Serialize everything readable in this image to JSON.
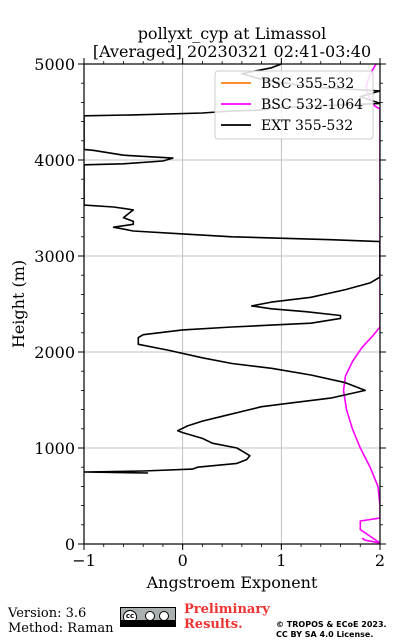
{
  "chart_data": {
    "type": "line",
    "title": [
      "pollyxt_cyp at Limassol",
      "[Averaged] 20230321 02:41-03:40"
    ],
    "xlabel": "Angstroem Exponent",
    "ylabel": "Height (m)",
    "xlim": [
      -1,
      2
    ],
    "ylim": [
      0,
      5000
    ],
    "x_ticks": [
      -1,
      0,
      1,
      2
    ],
    "x_tick_labels": [
      "−1",
      "0",
      "1",
      "2"
    ],
    "y_ticks": [
      0,
      1000,
      2000,
      3000,
      4000,
      5000
    ],
    "y_tick_labels": [
      "0",
      "1000",
      "2000",
      "3000",
      "4000",
      "5000"
    ],
    "grid": true,
    "legend_position": "top-right",
    "series": [
      {
        "name": "BSC 355-532",
        "color": "#ff7f0e",
        "points": []
      },
      {
        "name": "BSC 532-1064",
        "color": "#ff00ff",
        "points": [
          [
            1.82,
            60
          ],
          [
            1.85,
            40
          ],
          [
            2.0,
            10
          ],
          [
            1.8,
            150
          ],
          [
            1.8,
            240
          ],
          [
            2.0,
            270
          ],
          [
            2.0,
            400
          ],
          [
            1.98,
            600
          ],
          [
            1.9,
            800
          ],
          [
            1.8,
            1000
          ],
          [
            1.72,
            1200
          ],
          [
            1.66,
            1400
          ],
          [
            1.63,
            1600
          ],
          [
            1.65,
            1750
          ],
          [
            1.72,
            1900
          ],
          [
            1.82,
            2050
          ],
          [
            1.92,
            2160
          ],
          [
            2.0,
            2260
          ],
          [
            2.0,
            4530
          ],
          [
            1.95,
            4560
          ],
          [
            1.92,
            4600
          ],
          [
            1.88,
            4680
          ],
          [
            1.86,
            4760
          ],
          [
            1.88,
            4840
          ],
          [
            1.92,
            4930
          ],
          [
            1.96,
            5000
          ]
        ]
      },
      {
        "name": "EXT 355-532",
        "color": "#000000",
        "points": [
          [
            -0.35,
            740
          ],
          [
            -1.0,
            750
          ],
          [
            -0.4,
            760
          ],
          [
            0.1,
            780
          ],
          [
            0.15,
            800
          ],
          [
            0.55,
            840
          ],
          [
            0.65,
            880
          ],
          [
            0.68,
            920
          ],
          [
            0.6,
            970
          ],
          [
            0.55,
            1000
          ],
          [
            0.3,
            1050
          ],
          [
            0.2,
            1100
          ],
          [
            0.0,
            1160
          ],
          [
            -0.05,
            1180
          ],
          [
            0.05,
            1230
          ],
          [
            0.2,
            1280
          ],
          [
            0.4,
            1330
          ],
          [
            0.6,
            1380
          ],
          [
            0.8,
            1430
          ],
          [
            1.1,
            1470
          ],
          [
            1.5,
            1520
          ],
          [
            1.85,
            1600
          ],
          [
            1.65,
            1680
          ],
          [
            1.3,
            1760
          ],
          [
            0.9,
            1830
          ],
          [
            0.5,
            1880
          ],
          [
            0.2,
            1940
          ],
          [
            -0.15,
            2020
          ],
          [
            -0.45,
            2080
          ],
          [
            -0.45,
            2150
          ],
          [
            -0.4,
            2180
          ],
          [
            0.0,
            2230
          ],
          [
            0.5,
            2260
          ],
          [
            0.9,
            2280
          ],
          [
            1.3,
            2300
          ],
          [
            1.6,
            2350
          ],
          [
            1.6,
            2380
          ],
          [
            1.25,
            2420
          ],
          [
            0.9,
            2450
          ],
          [
            0.7,
            2480
          ],
          [
            0.9,
            2520
          ],
          [
            1.3,
            2570
          ],
          [
            1.65,
            2650
          ],
          [
            1.9,
            2720
          ],
          [
            2.0,
            2780
          ],
          [
            2.0,
            3150
          ],
          [
            1.5,
            3170
          ],
          [
            0.5,
            3200
          ],
          [
            0.0,
            3230
          ],
          [
            -0.5,
            3260
          ],
          [
            -0.7,
            3300
          ],
          [
            -0.5,
            3330
          ],
          [
            -0.5,
            3360
          ],
          [
            -0.6,
            3400
          ],
          [
            -0.55,
            3440
          ],
          [
            -0.5,
            3480
          ],
          [
            -0.7,
            3510
          ],
          [
            -1.0,
            3530
          ],
          [
            -1.0,
            3950
          ],
          [
            -0.6,
            3960
          ],
          [
            -0.2,
            3990
          ],
          [
            -0.1,
            4020
          ],
          [
            -0.6,
            4050
          ],
          [
            -0.9,
            4100
          ],
          [
            -1.0,
            4110
          ],
          [
            -1.0,
            4460
          ],
          [
            -0.5,
            4470
          ],
          [
            0.2,
            4490
          ],
          [
            0.5,
            4510
          ],
          [
            0.8,
            4520
          ],
          [
            0.9,
            4540
          ],
          [
            1.3,
            4560
          ],
          [
            1.8,
            4580
          ],
          [
            2.0,
            4590
          ],
          [
            1.8,
            4660
          ],
          [
            2.0,
            4720
          ],
          [
            1.3,
            4760
          ],
          [
            0.8,
            4840
          ],
          [
            0.6,
            4900
          ],
          [
            0.9,
            4960
          ],
          [
            1.0,
            5000
          ]
        ]
      }
    ]
  },
  "footer": {
    "version": "Version: 3.6",
    "method": "Method: Raman",
    "preliminary_line1": "Preliminary",
    "preliminary_line2": "Results.",
    "copyright_line1": "© TROPOS & ECoE 2023.",
    "copyright_line2": "CC BY SA 4.0 License.",
    "license_badge_icon": "cc-by-sa-icon"
  }
}
